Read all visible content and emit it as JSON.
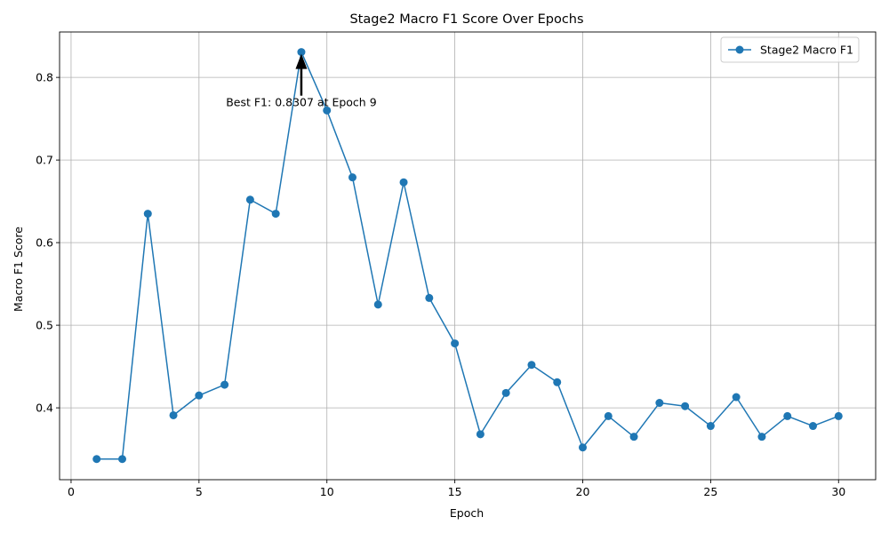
{
  "chart_data": {
    "type": "line",
    "title": "Stage2 Macro F1 Score Over Epochs",
    "xlabel": "Epoch",
    "ylabel": "Macro F1 Score",
    "xlim": [
      -0.45,
      31.45
    ],
    "ylim": [
      0.313,
      0.855
    ],
    "xticks": [
      0,
      5,
      10,
      15,
      20,
      25,
      30
    ],
    "yticks": [
      0.4,
      0.5,
      0.6,
      0.7,
      0.8
    ],
    "xtick_labels": [
      "0",
      "5",
      "10",
      "15",
      "20",
      "25",
      "30"
    ],
    "ytick_labels": [
      "0.4",
      "0.5",
      "0.6",
      "0.7",
      "0.8"
    ],
    "grid": true,
    "legend_position": "top-right",
    "series": [
      {
        "name": "Stage2 Macro F1",
        "color": "#1f77b4",
        "marker": "circle",
        "x": [
          1,
          2,
          3,
          4,
          5,
          6,
          7,
          8,
          9,
          10,
          11,
          12,
          13,
          14,
          15,
          16,
          17,
          18,
          19,
          20,
          21,
          22,
          23,
          24,
          25,
          26,
          27,
          28,
          29,
          30
        ],
        "y": [
          0.338,
          0.338,
          0.635,
          0.391,
          0.415,
          0.428,
          0.652,
          0.635,
          0.8307,
          0.76,
          0.679,
          0.525,
          0.673,
          0.533,
          0.478,
          0.368,
          0.418,
          0.452,
          0.431,
          0.352,
          0.39,
          0.365,
          0.406,
          0.402,
          0.378,
          0.413,
          0.365,
          0.39,
          0.378,
          0.39
        ]
      }
    ],
    "annotation": {
      "text": "Best F1: 0.8307 at Epoch 9",
      "point": [
        9,
        0.8307
      ],
      "text_anchor_point": [
        9,
        0.765
      ]
    }
  }
}
